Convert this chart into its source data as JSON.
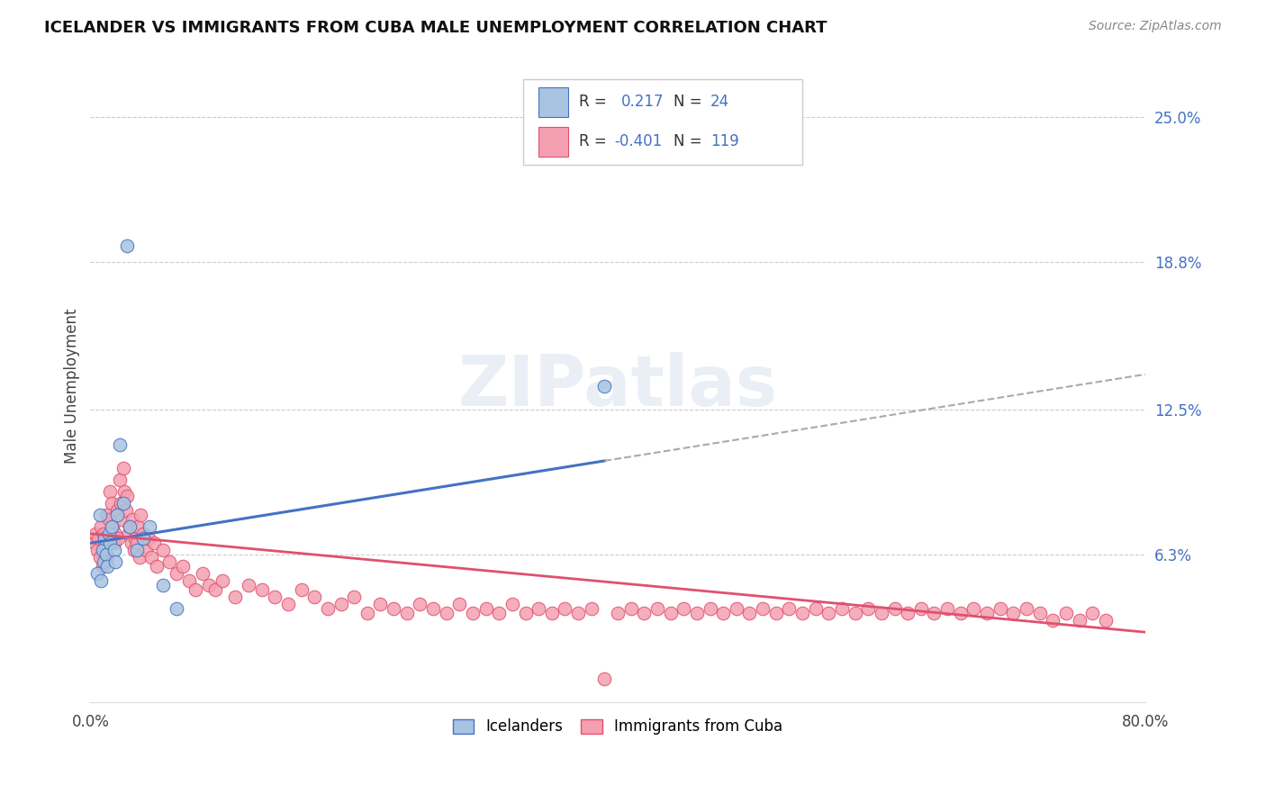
{
  "title": "ICELANDER VS IMMIGRANTS FROM CUBA MALE UNEMPLOYMENT CORRELATION CHART",
  "source": "Source: ZipAtlas.com",
  "ylabel": "Male Unemployment",
  "y_tick_labels_right": [
    "25.0%",
    "18.8%",
    "12.5%",
    "6.3%"
  ],
  "y_tick_values": [
    0.25,
    0.188,
    0.125,
    0.063
  ],
  "xlim": [
    0.0,
    0.8
  ],
  "ylim": [
    0.0,
    0.27
  ],
  "legend_label_1": "Icelanders",
  "legend_label_2": "Immigrants from Cuba",
  "R1": 0.217,
  "N1": 24,
  "R2": -0.401,
  "N2": 119,
  "icelander_color": "#a8c4e0",
  "cuba_color": "#f4a0b0",
  "trend_color_1": "#4472c4",
  "trend_color_2": "#e05070",
  "watermark": "ZIPatlas",
  "background_color": "#ffffff",
  "grid_color": "#cccccc",
  "icelander_x": [
    0.005,
    0.007,
    0.008,
    0.009,
    0.01,
    0.011,
    0.012,
    0.013,
    0.014,
    0.015,
    0.016,
    0.018,
    0.019,
    0.02,
    0.022,
    0.025,
    0.028,
    0.03,
    0.035,
    0.04,
    0.045,
    0.055,
    0.065,
    0.39
  ],
  "icelander_y": [
    0.055,
    0.08,
    0.052,
    0.065,
    0.06,
    0.07,
    0.063,
    0.058,
    0.072,
    0.068,
    0.075,
    0.065,
    0.06,
    0.08,
    0.11,
    0.085,
    0.195,
    0.075,
    0.065,
    0.07,
    0.075,
    0.05,
    0.04,
    0.135
  ],
  "cuba_x": [
    0.003,
    0.004,
    0.005,
    0.006,
    0.007,
    0.008,
    0.009,
    0.01,
    0.011,
    0.012,
    0.013,
    0.014,
    0.015,
    0.016,
    0.017,
    0.018,
    0.019,
    0.02,
    0.021,
    0.022,
    0.023,
    0.024,
    0.025,
    0.026,
    0.027,
    0.028,
    0.029,
    0.03,
    0.031,
    0.032,
    0.033,
    0.034,
    0.035,
    0.036,
    0.037,
    0.038,
    0.04,
    0.042,
    0.044,
    0.046,
    0.048,
    0.05,
    0.055,
    0.06,
    0.065,
    0.07,
    0.075,
    0.08,
    0.085,
    0.09,
    0.095,
    0.1,
    0.11,
    0.12,
    0.13,
    0.14,
    0.15,
    0.16,
    0.17,
    0.18,
    0.19,
    0.2,
    0.21,
    0.22,
    0.23,
    0.24,
    0.25,
    0.26,
    0.27,
    0.28,
    0.29,
    0.3,
    0.31,
    0.32,
    0.33,
    0.34,
    0.35,
    0.36,
    0.37,
    0.38,
    0.39,
    0.4,
    0.41,
    0.42,
    0.43,
    0.44,
    0.45,
    0.46,
    0.47,
    0.48,
    0.49,
    0.5,
    0.51,
    0.52,
    0.53,
    0.54,
    0.55,
    0.56,
    0.57,
    0.58,
    0.59,
    0.6,
    0.61,
    0.62,
    0.63,
    0.64,
    0.65,
    0.66,
    0.67,
    0.68,
    0.69,
    0.7,
    0.71,
    0.72,
    0.73,
    0.74,
    0.75,
    0.76,
    0.77
  ],
  "cuba_y": [
    0.068,
    0.072,
    0.065,
    0.07,
    0.062,
    0.075,
    0.058,
    0.072,
    0.068,
    0.08,
    0.062,
    0.078,
    0.09,
    0.085,
    0.075,
    0.068,
    0.072,
    0.082,
    0.07,
    0.095,
    0.085,
    0.078,
    0.1,
    0.09,
    0.082,
    0.088,
    0.072,
    0.075,
    0.068,
    0.078,
    0.065,
    0.07,
    0.068,
    0.075,
    0.062,
    0.08,
    0.072,
    0.065,
    0.07,
    0.062,
    0.068,
    0.058,
    0.065,
    0.06,
    0.055,
    0.058,
    0.052,
    0.048,
    0.055,
    0.05,
    0.048,
    0.052,
    0.045,
    0.05,
    0.048,
    0.045,
    0.042,
    0.048,
    0.045,
    0.04,
    0.042,
    0.045,
    0.038,
    0.042,
    0.04,
    0.038,
    0.042,
    0.04,
    0.038,
    0.042,
    0.038,
    0.04,
    0.038,
    0.042,
    0.038,
    0.04,
    0.038,
    0.04,
    0.038,
    0.04,
    0.01,
    0.038,
    0.04,
    0.038,
    0.04,
    0.038,
    0.04,
    0.038,
    0.04,
    0.038,
    0.04,
    0.038,
    0.04,
    0.038,
    0.04,
    0.038,
    0.04,
    0.038,
    0.04,
    0.038,
    0.04,
    0.038,
    0.04,
    0.038,
    0.04,
    0.038,
    0.04,
    0.038,
    0.04,
    0.038,
    0.04,
    0.038,
    0.04,
    0.038,
    0.035,
    0.038,
    0.035,
    0.038,
    0.035
  ],
  "trend1_x0": 0.0,
  "trend1_y0": 0.068,
  "trend1_x1": 0.8,
  "trend1_y1": 0.14,
  "trend2_x0": 0.0,
  "trend2_y0": 0.072,
  "trend2_x1": 0.8,
  "trend2_y1": 0.03
}
